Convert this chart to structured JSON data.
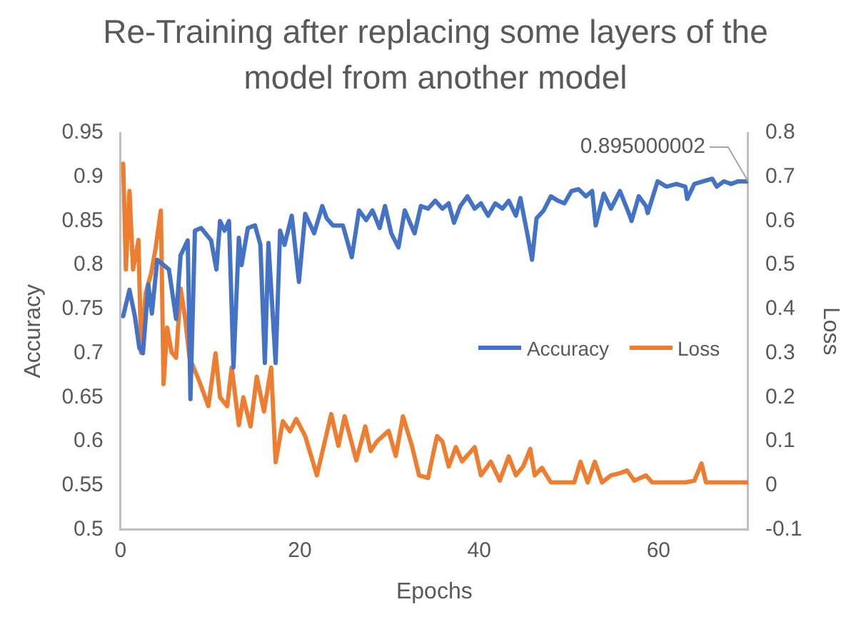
{
  "chart_data": {
    "type": "line",
    "title": "Re-Training after replacing some layers of the model from another model",
    "xlabel": "Epochs",
    "ylabel": "Accuracy",
    "y2label": "Loss",
    "xlim": [
      0,
      70
    ],
    "xticks": [
      0,
      20,
      40,
      60
    ],
    "ylim": [
      0.5,
      0.95
    ],
    "yticks": [
      0.5,
      0.55,
      0.6,
      0.65,
      0.7,
      0.75,
      0.8,
      0.85,
      0.9,
      0.95
    ],
    "y2lim": [
      -0.1,
      0.8
    ],
    "y2ticks": [
      -0.1,
      0,
      0.1,
      0.2,
      0.3,
      0.4,
      0.5,
      0.6,
      0.7,
      0.8
    ],
    "grid": false,
    "legend": "right",
    "marker": "none",
    "line_style": "solid",
    "annotations": [
      {
        "text": "0.895000002",
        "x": 70,
        "y": 0.895
      }
    ],
    "series": [
      {
        "name": "Accuracy",
        "color": "#4472c4",
        "x": [
          0.3,
          1.0,
          1.6,
          2.1,
          2.5,
          3.1,
          3.5,
          4.1,
          5.4,
          6.2,
          6.7,
          7.5,
          7.8,
          8.3,
          9.0,
          10.1,
          10.7,
          11.1,
          11.6,
          12.1,
          12.6,
          13.2,
          13.5,
          14.2,
          15.0,
          15.6,
          16.1,
          16.5,
          17.3,
          17.8,
          18.3,
          19.1,
          19.9,
          20.6,
          21.6,
          22.5,
          23.0,
          23.7,
          24.8,
          25.8,
          26.6,
          27.4,
          28.1,
          28.9,
          29.5,
          30.2,
          31.0,
          31.7,
          32.8,
          33.5,
          34.3,
          35.1,
          35.9,
          36.6,
          37.2,
          37.9,
          38.7,
          39.5,
          40.2,
          41.0,
          41.8,
          42.6,
          43.3,
          44.1,
          44.6,
          45.4,
          45.9,
          46.4,
          47.2,
          48.0,
          48.8,
          49.5,
          50.3,
          51.1,
          51.9,
          52.6,
          53.0,
          53.9,
          54.7,
          55.7,
          56.8,
          57.0,
          57.8,
          58.6,
          58.8,
          59.9,
          60.9,
          62.0,
          63.0,
          63.2,
          64.0,
          65.0,
          66.0,
          66.5,
          67.3,
          68.1,
          68.9,
          70
        ],
        "values": [
          0.742,
          0.772,
          0.742,
          0.706,
          0.7,
          0.778,
          0.745,
          0.806,
          0.795,
          0.739,
          0.811,
          0.828,
          0.648,
          0.839,
          0.842,
          0.828,
          0.795,
          0.85,
          0.839,
          0.85,
          0.684,
          0.831,
          0.8,
          0.842,
          0.845,
          0.823,
          0.689,
          0.825,
          0.689,
          0.839,
          0.823,
          0.856,
          0.781,
          0.858,
          0.836,
          0.867,
          0.853,
          0.845,
          0.845,
          0.809,
          0.862,
          0.851,
          0.862,
          0.842,
          0.867,
          0.836,
          0.82,
          0.862,
          0.836,
          0.867,
          0.864,
          0.873,
          0.864,
          0.87,
          0.848,
          0.867,
          0.878,
          0.864,
          0.87,
          0.856,
          0.87,
          0.864,
          0.873,
          0.856,
          0.876,
          0.834,
          0.806,
          0.853,
          0.862,
          0.878,
          0.873,
          0.87,
          0.884,
          0.886,
          0.878,
          0.884,
          0.845,
          0.881,
          0.864,
          0.884,
          0.856,
          0.85,
          0.878,
          0.867,
          0.859,
          0.895,
          0.889,
          0.892,
          0.889,
          0.875,
          0.892,
          0.895,
          0.898,
          0.889,
          0.895,
          0.892,
          0.895,
          0.895
        ]
      },
      {
        "name": "Loss",
        "color": "#ed7d31",
        "axis": "y2",
        "x": [
          0.3,
          0.6,
          1.0,
          1.4,
          2.0,
          2.3,
          2.8,
          3.4,
          3.9,
          4.5,
          4.8,
          5.2,
          5.7,
          6.2,
          6.7,
          7.2,
          7.7,
          8.8,
          9.8,
          10.6,
          11.1,
          11.9,
          12.4,
          13.2,
          13.7,
          14.5,
          15.2,
          16.0,
          16.8,
          17.3,
          18.1,
          18.9,
          19.6,
          20.6,
          21.9,
          23.5,
          24.3,
          25.0,
          26.3,
          27.3,
          27.9,
          28.6,
          29.9,
          30.7,
          31.5,
          32.5,
          33.3,
          34.3,
          35.3,
          35.9,
          36.6,
          37.4,
          38.1,
          39.5,
          40.2,
          41.3,
          42.3,
          43.3,
          44.1,
          44.9,
          45.7,
          46.2,
          47.0,
          48.0,
          49.5,
          50.6,
          51.3,
          52.1,
          52.9,
          53.7,
          54.7,
          55.7,
          56.5,
          57.3,
          58.6,
          59.3,
          60.4,
          63.0,
          64.0,
          64.8,
          65.3,
          67.6,
          70
        ],
        "values": [
          0.73,
          0.49,
          0.668,
          0.49,
          0.557,
          0.301,
          0.436,
          0.48,
          0.536,
          0.624,
          0.23,
          0.358,
          0.302,
          0.29,
          0.447,
          0.38,
          0.29,
          0.236,
          0.18,
          0.3,
          0.2,
          0.18,
          0.268,
          0.137,
          0.2,
          0.134,
          0.247,
          0.168,
          0.268,
          0.053,
          0.146,
          0.123,
          0.151,
          0.112,
          0.023,
          0.162,
          0.09,
          0.157,
          0.057,
          0.134,
          0.078,
          0.1,
          0.124,
          0.067,
          0.157,
          0.09,
          0.023,
          0.017,
          0.112,
          0.1,
          0.043,
          0.087,
          0.055,
          0.087,
          0.023,
          0.054,
          0.011,
          0.066,
          0.023,
          0.043,
          0.083,
          0.023,
          0.04,
          0.007,
          0.007,
          0.007,
          0.054,
          0.007,
          0.054,
          0.007,
          0.023,
          0.028,
          0.034,
          0.011,
          0.023,
          0.007,
          0.007,
          0.007,
          0.011,
          0.05,
          0.007,
          0.007,
          0.007
        ]
      }
    ]
  }
}
